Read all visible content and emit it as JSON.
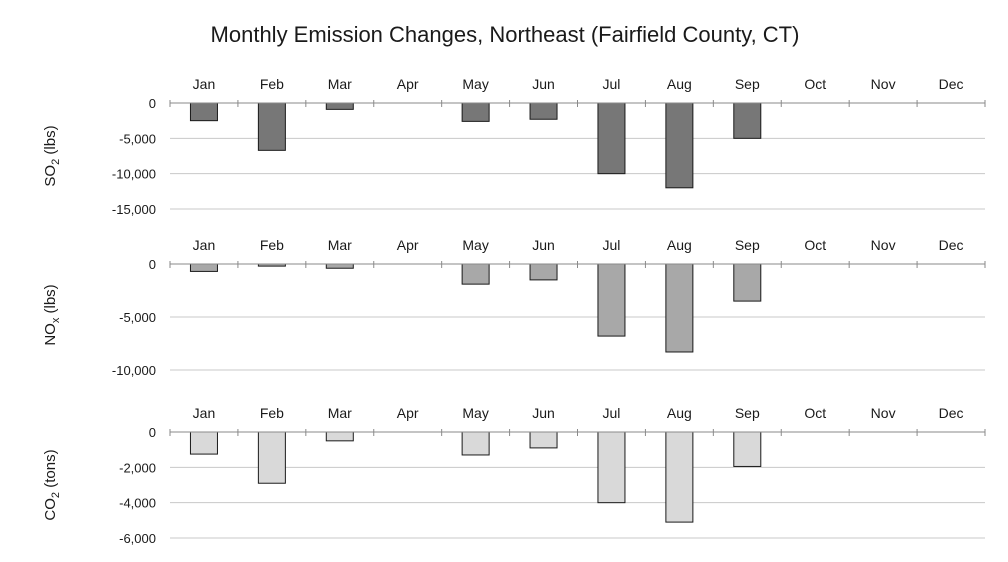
{
  "chart_data": {
    "type": "bar",
    "title": "Monthly Emission Changes, Northeast (Fairfield County, CT)",
    "categories": [
      "Jan",
      "Feb",
      "Mar",
      "Apr",
      "May",
      "Jun",
      "Jul",
      "Aug",
      "Sep",
      "Oct",
      "Nov",
      "Dec"
    ],
    "panels": [
      {
        "ylabel_main": "SO",
        "ylabel_sub": "2",
        "ylabel_unit": " (lbs)",
        "color": "#777777",
        "ylim": [
          -15000,
          0
        ],
        "yticks": [
          0,
          -5000,
          -10000,
          -15000
        ],
        "ytick_labels": [
          "0",
          "-5,000",
          "-10,000",
          "-15,000"
        ],
        "values": [
          -2500,
          -6700,
          -900,
          0,
          -2600,
          -2300,
          -10000,
          -12000,
          -5000,
          0,
          0,
          0
        ]
      },
      {
        "ylabel_main": "NO",
        "ylabel_sub": "x",
        "ylabel_unit": " (lbs)",
        "color": "#a8a8a8",
        "ylim": [
          -10000,
          0
        ],
        "yticks": [
          0,
          -5000,
          -10000
        ],
        "ytick_labels": [
          "0",
          "-5,000",
          "-10,000"
        ],
        "values": [
          -700,
          -200,
          -400,
          0,
          -1900,
          -1500,
          -6800,
          -8300,
          -3500,
          0,
          0,
          0
        ]
      },
      {
        "ylabel_main": "CO",
        "ylabel_sub": "2",
        "ylabel_unit": " (tons)",
        "color": "#d9d9d9",
        "ylim": [
          -6000,
          0
        ],
        "yticks": [
          0,
          -2000,
          -4000,
          -6000
        ],
        "ytick_labels": [
          "0",
          "-2,000",
          "-4,000",
          "-6,000"
        ],
        "values": [
          -1250,
          -2900,
          -500,
          0,
          -1300,
          -900,
          -4000,
          -5100,
          -1950,
          0,
          0,
          0
        ]
      }
    ]
  }
}
